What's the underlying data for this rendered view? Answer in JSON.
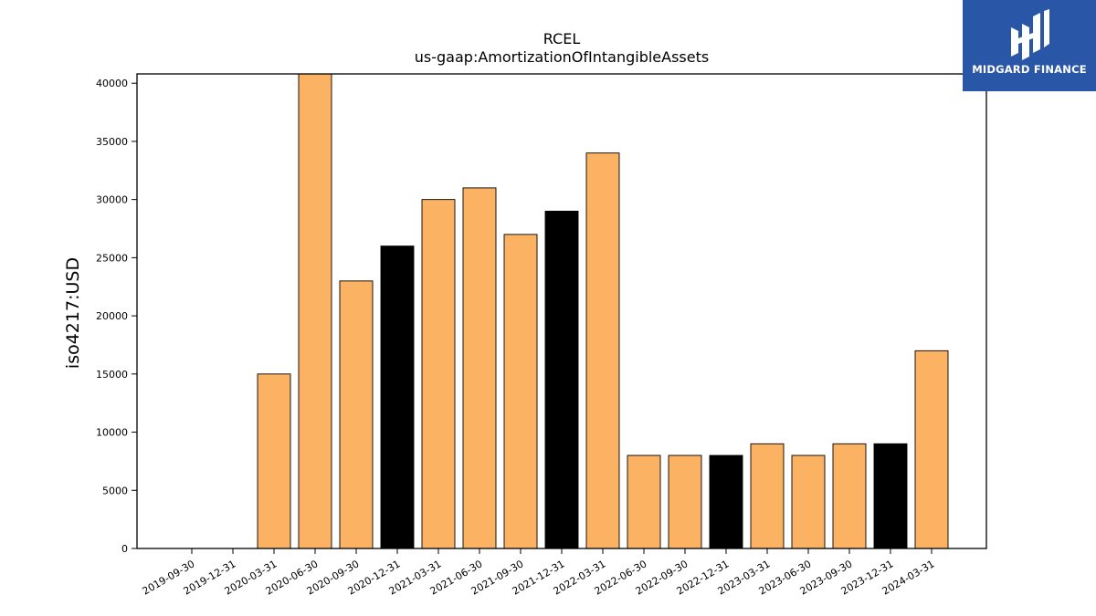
{
  "chart_data": {
    "type": "bar",
    "title": "RCEL",
    "subtitle": "us-gaap:AmortizationOfIntangibleAssets",
    "ylabel": "iso4217:USD",
    "xlabel": "",
    "ylim": [
      0,
      40800
    ],
    "yticks": [
      0,
      5000,
      10000,
      15000,
      20000,
      25000,
      30000,
      35000,
      40000
    ],
    "categories": [
      "2019-09-30",
      "2019-12-31",
      "2020-03-31",
      "2020-06-30",
      "2020-09-30",
      "2020-12-31",
      "2021-03-31",
      "2021-06-30",
      "2021-09-30",
      "2021-12-31",
      "2022-03-31",
      "2022-06-30",
      "2022-09-30",
      "2022-12-31",
      "2023-03-31",
      "2023-06-30",
      "2023-09-30",
      "2023-12-31",
      "2024-03-31"
    ],
    "values": [
      0,
      0,
      15000,
      41000,
      23000,
      26000,
      30000,
      31000,
      27000,
      29000,
      34000,
      8000,
      8000,
      8000,
      9000,
      8000,
      9000,
      9000,
      17000
    ],
    "bar_colors": [
      "#fbb263",
      "#fbb263",
      "#fbb263",
      "#fbb263",
      "#fbb263",
      "#000000",
      "#fbb263",
      "#fbb263",
      "#fbb263",
      "#000000",
      "#fbb263",
      "#fbb263",
      "#fbb263",
      "#000000",
      "#fbb263",
      "#fbb263",
      "#fbb263",
      "#000000",
      "#fbb263"
    ],
    "grid": false,
    "legend": "none"
  },
  "logo": {
    "text": "MIDGARD FINANCE",
    "color": "#2a56a8"
  }
}
